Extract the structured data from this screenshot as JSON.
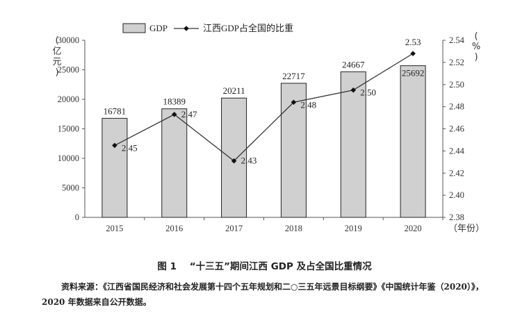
{
  "chart_data": {
    "type": "bar+line",
    "categories": [
      "2015",
      "2016",
      "2017",
      "2018",
      "2019",
      "2020"
    ],
    "series": [
      {
        "name": "GDP",
        "type": "bar",
        "axis": "left",
        "values": [
          16781,
          18389,
          20211,
          22717,
          24667,
          25692
        ],
        "labels": [
          "16781",
          "18389",
          "20211",
          "22717",
          "24667",
          "25692"
        ]
      },
      {
        "name": "江西GDP占全国的比重",
        "type": "line",
        "axis": "right",
        "values": [
          2.445,
          2.473,
          2.431,
          2.484,
          2.495,
          2.528
        ],
        "labels": [
          "2.45",
          "2.47",
          "2.43",
          "2.48",
          "2.50",
          "2.53"
        ]
      }
    ],
    "left_axis": {
      "unit_label": "亿元",
      "ylim": [
        0,
        30000
      ],
      "ticks": [
        "0",
        "5000",
        "10000",
        "15000",
        "20000",
        "25000",
        "30000"
      ]
    },
    "right_axis": {
      "unit_label": "%",
      "ylim": [
        2.38,
        2.54
      ],
      "ticks": [
        "2.38",
        "2.40",
        "2.42",
        "2.44",
        "2.46",
        "2.48",
        "2.50",
        "2.52",
        "2.54"
      ]
    },
    "x_unit_label": "（年份）",
    "legend_position": "top-left",
    "grid": false
  },
  "caption": {
    "figure_no": "图 1",
    "title": "“十三五”期间江西 GDP 及占全国比重情况"
  },
  "source": {
    "label": "资料来源：",
    "text": "《江西省国民经济和社会发展第十四个五年规划和二○三五年远景目标纲要》《中国统计年鉴（2020）》，2020 年数据来自公开数据。"
  }
}
